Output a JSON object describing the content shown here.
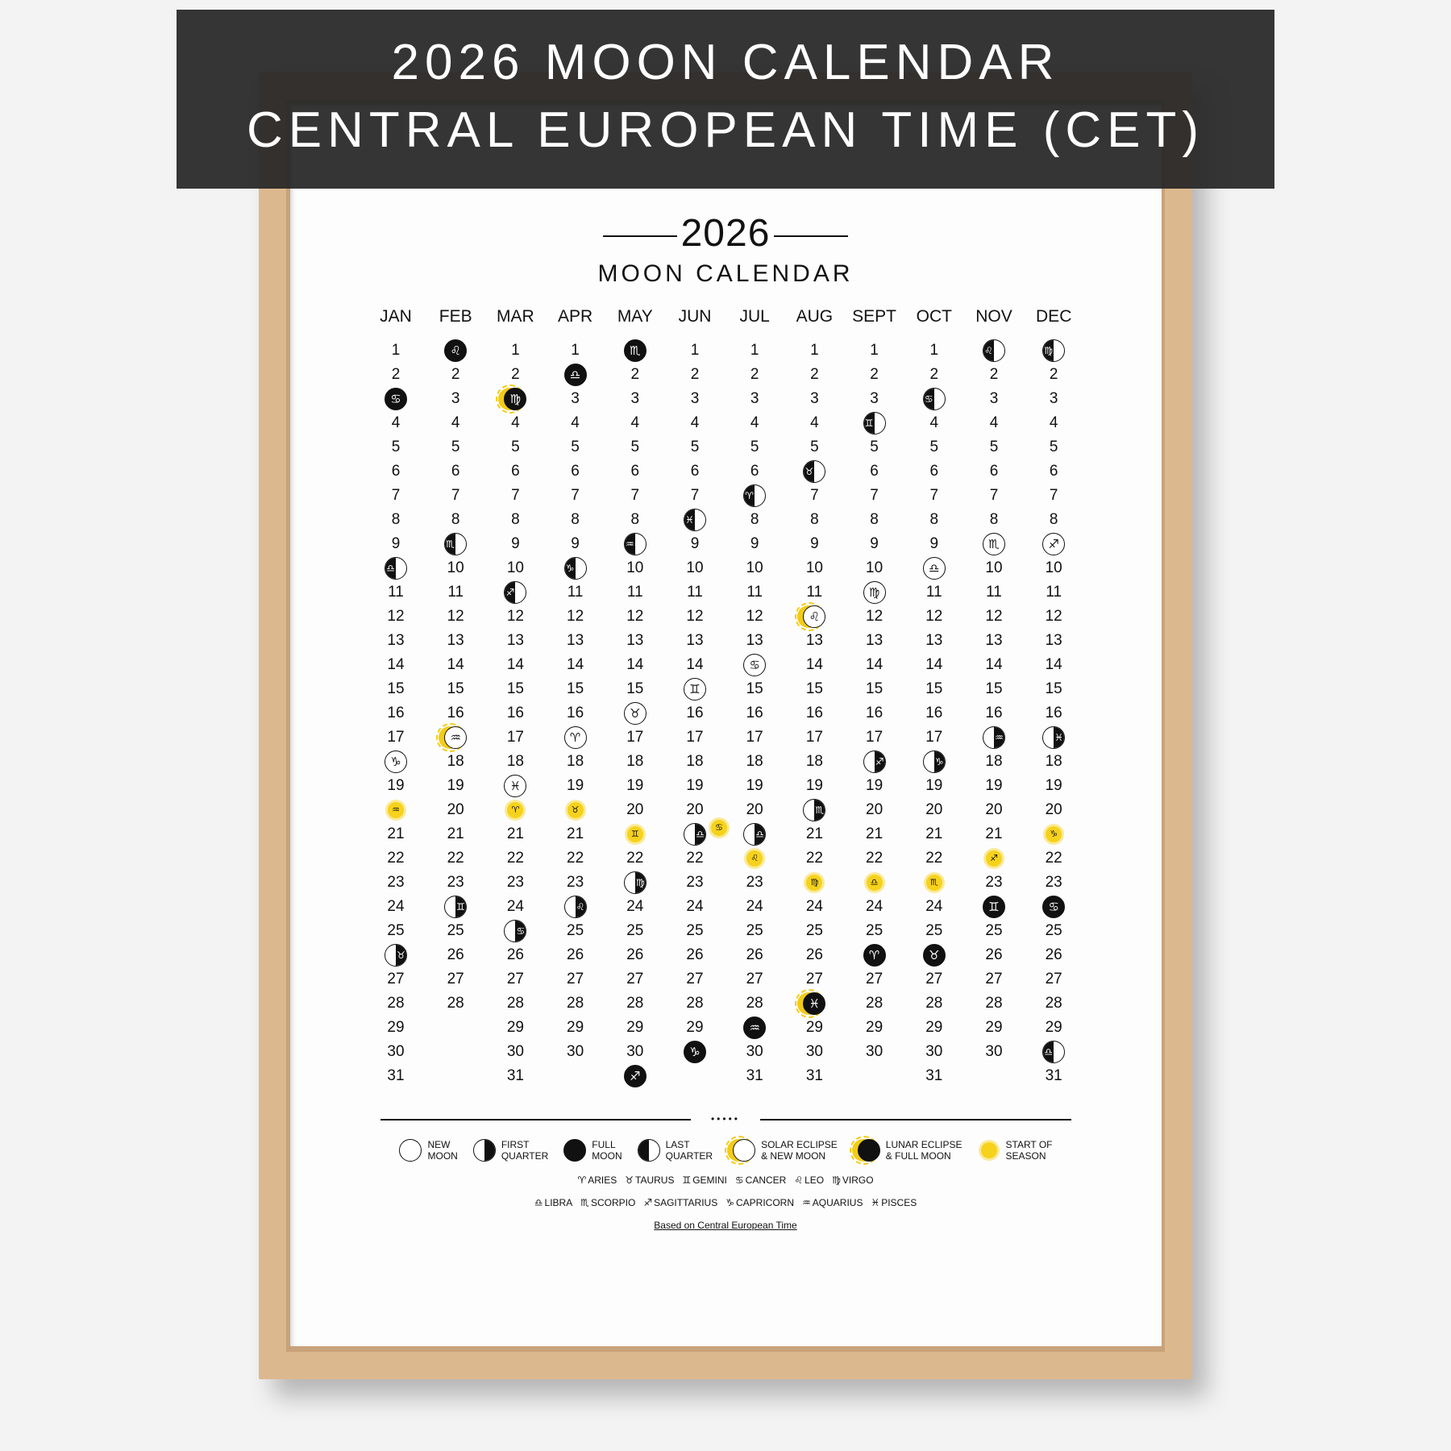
{
  "poster": {
    "year": "2026",
    "subtitle": "MOON CALENDAR",
    "months": [
      "JAN",
      "FEB",
      "MAR",
      "APR",
      "MAY",
      "JUN",
      "JUL",
      "AUG",
      "SEPT",
      "OCT",
      "NOV",
      "DEC"
    ],
    "days_in_month": [
      31,
      28,
      31,
      30,
      31,
      30,
      31,
      31,
      30,
      31,
      30,
      31
    ],
    "events": [
      {
        "3": {
          "phase": "full",
          "sign": "cancer"
        },
        "10": {
          "phase": "last",
          "sign": "libra"
        },
        "18": {
          "phase": "new",
          "sign": "capricorn"
        },
        "20": {
          "phase": "season",
          "sign": "aquarius"
        },
        "26": {
          "phase": "first",
          "sign": "taurus"
        }
      },
      {
        "1": {
          "phase": "full",
          "sign": "leo"
        },
        "9": {
          "phase": "last",
          "sign": "scorpio"
        },
        "17": {
          "phase": "solar",
          "sign": "aquarius"
        },
        "24": {
          "phase": "first",
          "sign": "gemini"
        }
      },
      {
        "3": {
          "phase": "lunar",
          "sign": "virgo"
        },
        "11": {
          "phase": "last",
          "sign": "sagittarius"
        },
        "19": {
          "phase": "new",
          "sign": "pisces"
        },
        "20": {
          "phase": "season",
          "sign": "aries"
        },
        "25": {
          "phase": "first",
          "sign": "cancer"
        }
      },
      {
        "2": {
          "phase": "full",
          "sign": "libra"
        },
        "10": {
          "phase": "last",
          "sign": "capricorn"
        },
        "17": {
          "phase": "new",
          "sign": "aries"
        },
        "20": {
          "phase": "season",
          "sign": "taurus"
        },
        "24": {
          "phase": "first",
          "sign": "leo"
        }
      },
      {
        "1": {
          "phase": "full",
          "sign": "scorpio"
        },
        "9": {
          "phase": "last",
          "sign": "aquarius"
        },
        "16": {
          "phase": "new",
          "sign": "taurus"
        },
        "21": {
          "phase": "season",
          "sign": "gemini"
        },
        "23": {
          "phase": "first",
          "sign": "virgo"
        },
        "31": {
          "phase": "full",
          "sign": "sagittarius"
        }
      },
      {
        "8": {
          "phase": "last",
          "sign": "pisces"
        },
        "15": {
          "phase": "new",
          "sign": "gemini"
        },
        "21": {
          "phase": "first",
          "sign": "libra",
          "season": "cancer"
        },
        "30": {
          "phase": "full",
          "sign": "capricorn"
        }
      },
      {
        "7": {
          "phase": "last",
          "sign": "aries"
        },
        "14": {
          "phase": "new",
          "sign": "cancer"
        },
        "21": {
          "phase": "first",
          "sign": "libra"
        },
        "22": {
          "phase": "season",
          "sign": "leo"
        },
        "29": {
          "phase": "full",
          "sign": "aquarius"
        }
      },
      {
        "6": {
          "phase": "last",
          "sign": "taurus"
        },
        "12": {
          "phase": "solar",
          "sign": "leo"
        },
        "20": {
          "phase": "first",
          "sign": "scorpio"
        },
        "23": {
          "phase": "season",
          "sign": "virgo"
        },
        "28": {
          "phase": "lunar",
          "sign": "pisces"
        }
      },
      {
        "4": {
          "phase": "last",
          "sign": "gemini"
        },
        "11": {
          "phase": "new",
          "sign": "virgo"
        },
        "18": {
          "phase": "first",
          "sign": "sagittarius"
        },
        "23": {
          "phase": "season",
          "sign": "libra"
        },
        "26": {
          "phase": "full",
          "sign": "aries"
        }
      },
      {
        "3": {
          "phase": "last",
          "sign": "cancer"
        },
        "10": {
          "phase": "new",
          "sign": "libra"
        },
        "18": {
          "phase": "first",
          "sign": "capricorn"
        },
        "23": {
          "phase": "season",
          "sign": "scorpio"
        },
        "26": {
          "phase": "full",
          "sign": "taurus"
        }
      },
      {
        "1": {
          "phase": "last",
          "sign": "leo"
        },
        "9": {
          "phase": "new",
          "sign": "scorpio"
        },
        "17": {
          "phase": "first",
          "sign": "aquarius"
        },
        "22": {
          "phase": "season",
          "sign": "sagittarius"
        },
        "24": {
          "phase": "full",
          "sign": "gemini"
        }
      },
      {
        "1": {
          "phase": "last",
          "sign": "virgo"
        },
        "9": {
          "phase": "new",
          "sign": "sagittarius"
        },
        "17": {
          "phase": "first",
          "sign": "pisces"
        },
        "21": {
          "phase": "season",
          "sign": "capricorn"
        },
        "24": {
          "phase": "full",
          "sign": "cancer"
        },
        "30": {
          "phase": "last",
          "sign": "libra"
        }
      }
    ]
  },
  "legend": {
    "phases": [
      {
        "key": "new",
        "label": "NEW\nMOON"
      },
      {
        "key": "first",
        "label": "FIRST\nQUARTER"
      },
      {
        "key": "full",
        "label": "FULL\nMOON"
      },
      {
        "key": "last",
        "label": "LAST\nQUARTER"
      },
      {
        "key": "solar",
        "label": "SOLAR ECLIPSE\n& NEW MOON"
      },
      {
        "key": "lunar",
        "label": "LUNAR ECLIPSE\n& FULL MOON"
      },
      {
        "key": "season",
        "label": "START OF\nSEASON"
      }
    ],
    "zodiac_row1": [
      {
        "key": "aries",
        "label": "ARIES"
      },
      {
        "key": "taurus",
        "label": "TAURUS"
      },
      {
        "key": "gemini",
        "label": "GEMINI"
      },
      {
        "key": "cancer",
        "label": "CANCER"
      },
      {
        "key": "leo",
        "label": "LEO"
      },
      {
        "key": "virgo",
        "label": "VIRGO"
      }
    ],
    "zodiac_row2": [
      {
        "key": "libra",
        "label": "LIBRA"
      },
      {
        "key": "scorpio",
        "label": "SCORPIO"
      },
      {
        "key": "sagittarius",
        "label": "SAGITTARIUS"
      },
      {
        "key": "capricorn",
        "label": "CAPRICORN"
      },
      {
        "key": "aquarius",
        "label": "AQUARIUS"
      },
      {
        "key": "pisces",
        "label": "PISCES"
      }
    ],
    "footnote": "Based on Central European Time"
  },
  "banner": {
    "line1": "2026 MOON CALENDAR",
    "line2": "CENTRAL EUROPEAN TIME (CET)"
  },
  "colors": {
    "frame": "#dcb88f",
    "ink": "#111111",
    "eclipse_yellow": "#f4cc15",
    "banner": "#262626"
  }
}
